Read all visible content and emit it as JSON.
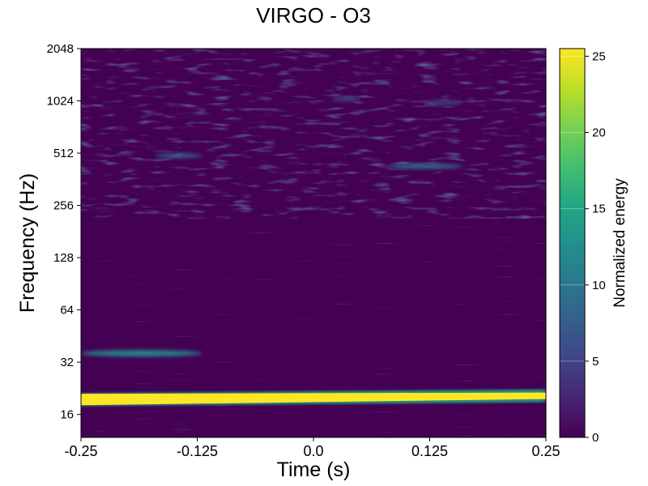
{
  "chart_data": {
    "type": "heatmap",
    "title": "VIRGO - O3",
    "xlabel": "Time (s)",
    "ylabel": "Frequency (Hz)",
    "colorbar_label": "Normalized energy",
    "colormap": "viridis",
    "xlim": [
      -0.25,
      0.25
    ],
    "ylim": [
      11.8,
      2048
    ],
    "yscale": "log2",
    "x_ticks": [
      {
        "value": -0.25,
        "label": "-0.25"
      },
      {
        "value": -0.125,
        "label": "-0.125"
      },
      {
        "value": 0.0,
        "label": "0.0"
      },
      {
        "value": 0.125,
        "label": "0.125"
      },
      {
        "value": 0.25,
        "label": "0.25"
      }
    ],
    "y_ticks": [
      {
        "value": 16,
        "label": "16"
      },
      {
        "value": 32,
        "label": "32"
      },
      {
        "value": 64,
        "label": "64"
      },
      {
        "value": 128,
        "label": "128"
      },
      {
        "value": 256,
        "label": "256"
      },
      {
        "value": 512,
        "label": "512"
      },
      {
        "value": 1024,
        "label": "1024"
      },
      {
        "value": 2048,
        "label": "2048"
      }
    ],
    "colorbar_range": [
      0,
      25.5
    ],
    "colorbar_ticks": [
      {
        "value": 0,
        "label": "0"
      },
      {
        "value": 5,
        "label": "5"
      },
      {
        "value": 10,
        "label": "10"
      },
      {
        "value": 15,
        "label": "15"
      },
      {
        "value": 20,
        "label": "20"
      },
      {
        "value": 25,
        "label": "25"
      }
    ],
    "features": [
      {
        "t0": -0.25,
        "t1": 0.25,
        "f_start": 19.5,
        "f_end": 20.5,
        "energy": 25
      },
      {
        "t0": -0.25,
        "t1": -0.12,
        "f_start": 36,
        "f_end": 36,
        "energy": 13
      },
      {
        "t0": 0.08,
        "t1": 0.16,
        "f_start": 430,
        "f_end": 430,
        "energy": 9
      },
      {
        "t0": -0.17,
        "t1": -0.12,
        "f_start": 495,
        "f_end": 495,
        "energy": 7
      },
      {
        "t0": 0.02,
        "t1": 0.05,
        "f_start": 1050,
        "f_end": 1050,
        "energy": 6
      },
      {
        "t0": 0.12,
        "t1": 0.16,
        "f_start": 1000,
        "f_end": 1000,
        "energy": 6
      }
    ]
  }
}
